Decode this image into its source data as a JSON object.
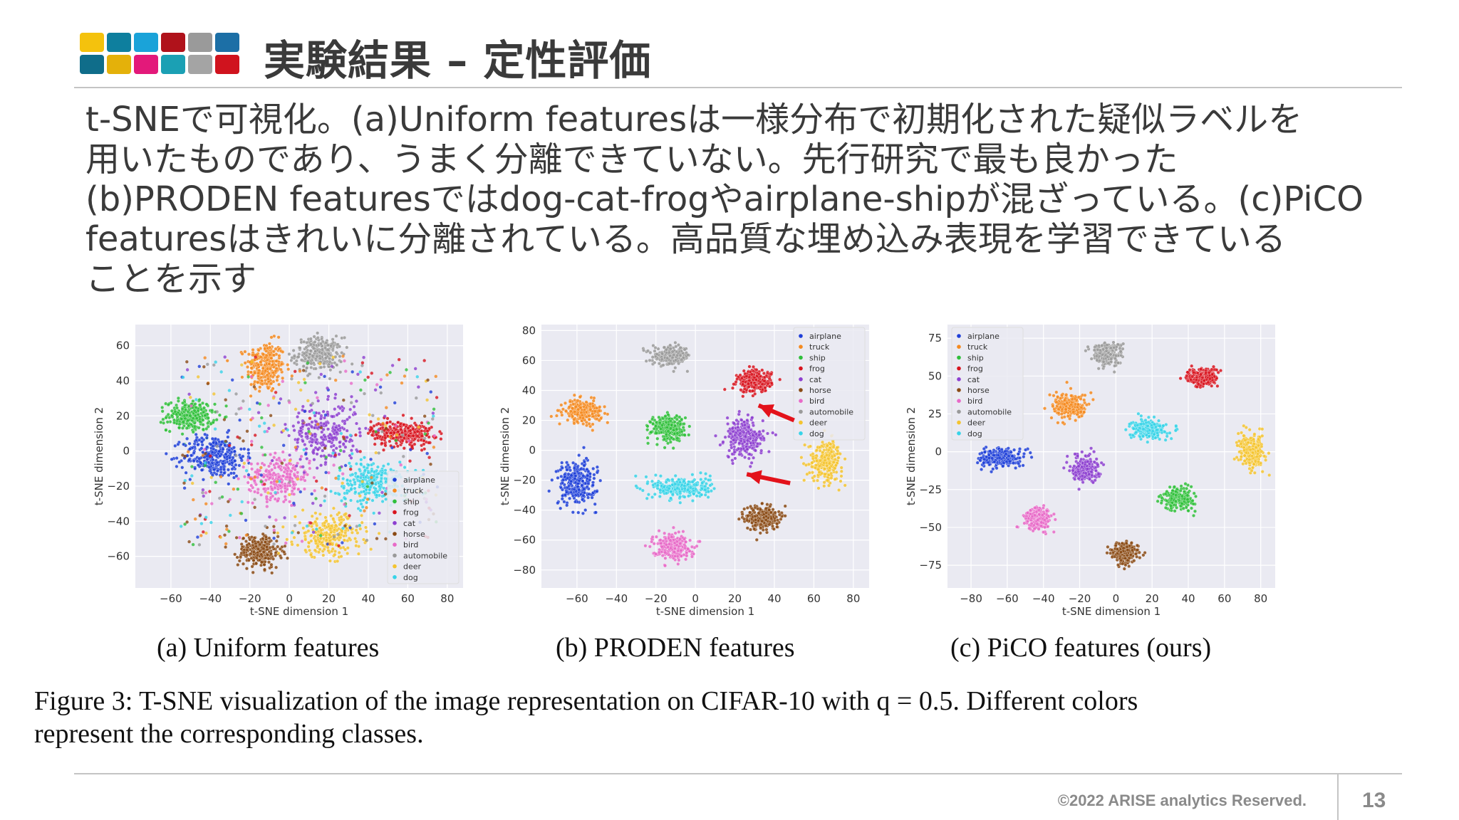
{
  "slide": {
    "title": "実験結果 – 定性評価",
    "body_lines": [
      "t-SNEで可視化。(a)Uniform featuresは一様分布で初期化された疑似ラベルを",
      "用いたものであり、うまく分離できていない。先行研究で最も良かった",
      "(b)PRODEN featuresではdog-cat-frogやairplane-shipが混ざっている。(c)PiCO",
      "featuresはきれいに分離されている。高品質な埋め込み表現を学習できている",
      "ことを示す"
    ],
    "figure_caption_lines": [
      "Figure 3:  T-SNE visualization of the image representation on CIFAR-10 with q = 0.5.  Different colors",
      "represent the corresponding classes."
    ],
    "footer": {
      "copyright": "©2022 ARISE analytics Reserved.",
      "page_number": "13"
    },
    "logo_colors": [
      "#f4c20d",
      "#0e7f9e",
      "#1aa3d9",
      "#b0121b",
      "#9a9a9a",
      "#1c6fa6",
      "#0f6d8a",
      "#e4b10a",
      "#e3197a",
      "#1ba0b4",
      "#a4a4a4",
      "#d0131e"
    ]
  },
  "legend_classes": [
    {
      "name": "airplane",
      "color": "#1f3fd8"
    },
    {
      "name": "truck",
      "color": "#f58a1f"
    },
    {
      "name": "ship",
      "color": "#2fbf3a"
    },
    {
      "name": "frog",
      "color": "#d8141e"
    },
    {
      "name": "cat",
      "color": "#8d3fd0"
    },
    {
      "name": "horse",
      "color": "#8a4a14"
    },
    {
      "name": "bird",
      "color": "#e86ac8"
    },
    {
      "name": "automobile",
      "color": "#9a9a9a"
    },
    {
      "name": "deer",
      "color": "#f4c430"
    },
    {
      "name": "dog",
      "color": "#37d3e8"
    }
  ],
  "chart_data": [
    {
      "type": "scatter",
      "caption": "(a) Uniform features",
      "xlabel": "t-SNE dimension 1",
      "ylabel": "t-SNE dimension 2",
      "xlim": [
        -78,
        88
      ],
      "ylim": [
        -78,
        72
      ],
      "xticks": [
        -60,
        -40,
        -20,
        0,
        20,
        40,
        60,
        80
      ],
      "yticks": [
        60,
        40,
        20,
        0,
        -20,
        -40,
        -60
      ],
      "grid": true,
      "legend": "bottom-right",
      "clusters": [
        {
          "cls": "truck",
          "cx": -12,
          "cy": 48,
          "sx": 8,
          "sy": 12,
          "n": 260
        },
        {
          "cls": "automobile",
          "cx": 15,
          "cy": 55,
          "sx": 10,
          "sy": 8,
          "n": 260
        },
        {
          "cls": "ship",
          "cx": -50,
          "cy": 20,
          "sx": 10,
          "sy": 7,
          "n": 260
        },
        {
          "cls": "airplane",
          "cx": -38,
          "cy": -3,
          "sx": 13,
          "sy": 10,
          "n": 320
        },
        {
          "cls": "bird",
          "cx": -5,
          "cy": -15,
          "sx": 13,
          "sy": 10,
          "n": 260
        },
        {
          "cls": "cat",
          "cx": 18,
          "cy": 10,
          "sx": 15,
          "sy": 14,
          "n": 260
        },
        {
          "cls": "frog",
          "cx": 57,
          "cy": 10,
          "sx": 13,
          "sy": 6,
          "n": 280
        },
        {
          "cls": "dog",
          "cx": 42,
          "cy": -18,
          "sx": 15,
          "sy": 10,
          "n": 260
        },
        {
          "cls": "horse",
          "cx": -15,
          "cy": -57,
          "sx": 9,
          "sy": 8,
          "n": 260
        },
        {
          "cls": "deer",
          "cx": 20,
          "cy": -48,
          "sx": 14,
          "sy": 10,
          "n": 260
        }
      ]
    },
    {
      "type": "scatter",
      "caption": "(b) PRODEN features",
      "xlabel": "t-SNE dimension 1",
      "ylabel": "t-SNE dimension 2",
      "xlim": [
        -78,
        88
      ],
      "ylim": [
        -92,
        84
      ],
      "xticks": [
        -60,
        -40,
        -20,
        0,
        20,
        40,
        60,
        80
      ],
      "yticks": [
        80,
        60,
        40,
        20,
        0,
        -20,
        -40,
        -60,
        -80
      ],
      "grid": true,
      "legend": "top-right",
      "annotations": [
        "red arrow pointing to frog/cat boundary",
        "red arrow pointing to cat/dog boundary"
      ],
      "clusters": [
        {
          "cls": "automobile",
          "cx": -12,
          "cy": 63,
          "sx": 8,
          "sy": 5,
          "n": 240
        },
        {
          "cls": "truck",
          "cx": -57,
          "cy": 26,
          "sx": 8,
          "sy": 6,
          "n": 240
        },
        {
          "cls": "ship",
          "cx": -14,
          "cy": 15,
          "sx": 7,
          "sy": 7,
          "n": 260
        },
        {
          "cls": "frog",
          "cx": 30,
          "cy": 46,
          "sx": 7,
          "sy": 6,
          "n": 260
        },
        {
          "cls": "cat",
          "cx": 25,
          "cy": 8,
          "sx": 8,
          "sy": 11,
          "n": 260
        },
        {
          "cls": "deer",
          "cx": 66,
          "cy": -7,
          "sx": 7,
          "sy": 11,
          "n": 260
        },
        {
          "cls": "airplane",
          "cx": -60,
          "cy": -22,
          "sx": 8,
          "sy": 12,
          "n": 280
        },
        {
          "cls": "dog",
          "cx": -7,
          "cy": -25,
          "sx": 12,
          "sy": 6,
          "n": 280
        },
        {
          "cls": "horse",
          "cx": 34,
          "cy": -45,
          "sx": 7,
          "sy": 7,
          "n": 240
        },
        {
          "cls": "bird",
          "cx": -12,
          "cy": -64,
          "sx": 8,
          "sy": 7,
          "n": 240
        }
      ]
    },
    {
      "type": "scatter",
      "caption": "(c) PiCO features (ours)",
      "xlabel": "t-SNE dimension 1",
      "ylabel": "t-SNE dimension 2",
      "xlim": [
        -93,
        88
      ],
      "ylim": [
        -90,
        84
      ],
      "xticks": [
        -80,
        -60,
        -40,
        -20,
        0,
        20,
        40,
        60,
        80
      ],
      "yticks": [
        75,
        50,
        25,
        0,
        -25,
        -50,
        -75
      ],
      "grid": true,
      "legend": "top-left",
      "clusters": [
        {
          "cls": "automobile",
          "cx": -5,
          "cy": 65,
          "sx": 7,
          "sy": 6,
          "n": 240
        },
        {
          "cls": "frog",
          "cx": 48,
          "cy": 49,
          "sx": 7,
          "sy": 5,
          "n": 240
        },
        {
          "cls": "truck",
          "cx": -25,
          "cy": 30,
          "sx": 8,
          "sy": 7,
          "n": 240
        },
        {
          "cls": "dog",
          "cx": 18,
          "cy": 15,
          "sx": 8,
          "sy": 5,
          "n": 240
        },
        {
          "cls": "deer",
          "cx": 75,
          "cy": 0,
          "sx": 6,
          "sy": 9,
          "n": 240
        },
        {
          "cls": "airplane",
          "cx": -64,
          "cy": -4,
          "sx": 9,
          "sy": 5,
          "n": 260
        },
        {
          "cls": "cat",
          "cx": -17,
          "cy": -11,
          "sx": 6,
          "sy": 7,
          "n": 240
        },
        {
          "cls": "ship",
          "cx": 35,
          "cy": -31,
          "sx": 7,
          "sy": 6,
          "n": 240
        },
        {
          "cls": "bird",
          "cx": -43,
          "cy": -44,
          "sx": 6,
          "sy": 6,
          "n": 240
        },
        {
          "cls": "horse",
          "cx": 5,
          "cy": -67,
          "sx": 6,
          "sy": 6,
          "n": 240
        }
      ]
    }
  ]
}
